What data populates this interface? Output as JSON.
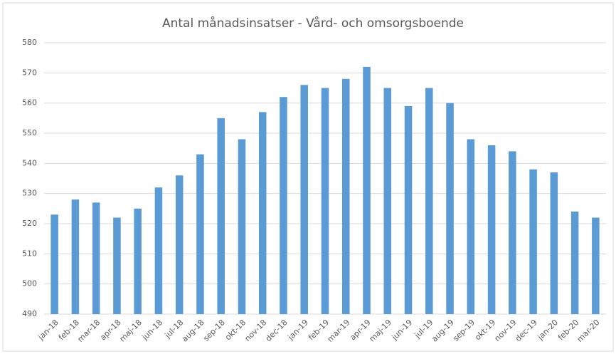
{
  "chart_data": {
    "type": "bar",
    "title": "Antal månadsinsatser - Vård- och omsorgsboende",
    "categories": [
      "jan-18",
      "feb-18",
      "mar-18",
      "apr-18",
      "maj-18",
      "jun-18",
      "jul-18",
      "aug-18",
      "sep-18",
      "okt-18",
      "nov-18",
      "dec-18",
      "jan-19",
      "feb-19",
      "mar-19",
      "apr-19",
      "maj-19",
      "jun-19",
      "jul-19",
      "aug-19",
      "sep-19",
      "okt-19",
      "nov-19",
      "dec-19",
      "jan-20",
      "feb-20",
      "mar-20"
    ],
    "values": [
      523,
      528,
      527,
      522,
      525,
      532,
      536,
      543,
      555,
      548,
      557,
      562,
      566,
      565,
      568,
      572,
      565,
      559,
      565,
      560,
      548,
      546,
      544,
      538,
      537,
      524,
      522
    ],
    "color": "#5b9bd5",
    "ylim": [
      490,
      580
    ],
    "yticks": [
      490,
      500,
      510,
      520,
      530,
      540,
      550,
      560,
      570,
      580
    ],
    "grid": true
  }
}
